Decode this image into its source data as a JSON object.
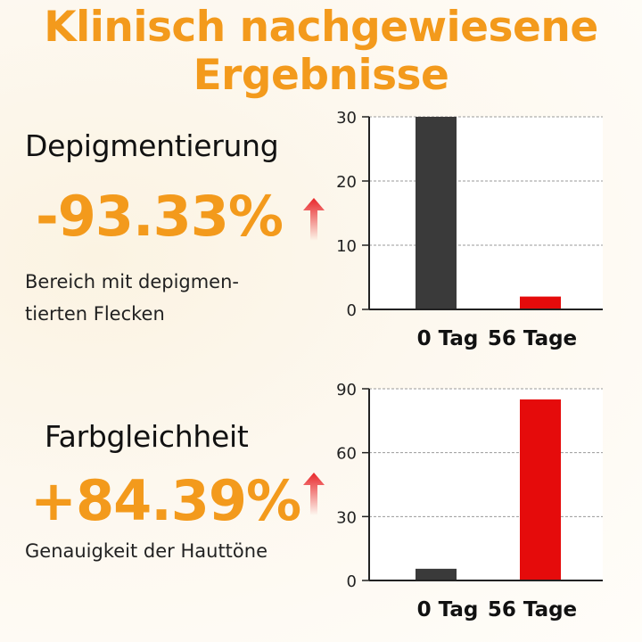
{
  "title": {
    "line1": "Klinisch nachgewiesene",
    "line2": "Ergebnisse"
  },
  "metrics": [
    {
      "name": "Depigmentierung",
      "value": "-93.33%",
      "desc_line1": "Bereich mit depigmen-",
      "desc_line2": "tierten Flecken",
      "arrow_icon": "up-arrow-icon",
      "arrow_color": "#e8262a"
    },
    {
      "name": "Farbgleichheit",
      "value": "+84.39%",
      "desc_line1": "Genauigkeit der Hauttöne",
      "arrow_icon": "up-arrow-icon",
      "arrow_color": "#e8262a"
    }
  ],
  "colors": {
    "accent": "#f39a1c",
    "bar_day0": "#3a3a3a",
    "bar_day56": "#e50b0b",
    "arrow": "#e8262a"
  },
  "chart_data": [
    {
      "type": "bar",
      "title": "Depigmentierung",
      "categories": [
        "0 Tag",
        "56 Tage"
      ],
      "values": [
        30,
        2
      ],
      "ylim": [
        0,
        30
      ],
      "yticks": [
        0,
        10,
        20,
        30
      ],
      "grid": true
    },
    {
      "type": "bar",
      "title": "Farbgleichheit",
      "categories": [
        "0 Tag",
        "56 Tage"
      ],
      "values": [
        5.5,
        85
      ],
      "ylim": [
        0,
        90
      ],
      "yticks": [
        0,
        30,
        60,
        90
      ],
      "grid": true
    }
  ]
}
